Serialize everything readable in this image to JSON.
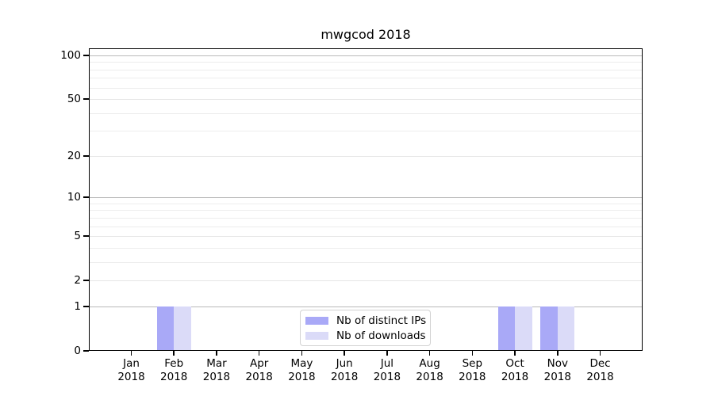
{
  "chart_data": {
    "type": "bar",
    "title": "mwgcod 2018",
    "categories": [
      "Jan 2018",
      "Feb 2018",
      "Mar 2018",
      "Apr 2018",
      "May 2018",
      "Jun 2018",
      "Jul 2018",
      "Aug 2018",
      "Sep 2018",
      "Oct 2018",
      "Nov 2018",
      "Dec 2018"
    ],
    "series": [
      {
        "name": "Nb of distinct IPs",
        "color": "#a9a9f7",
        "values": [
          0,
          1,
          0,
          0,
          0,
          0,
          0,
          0,
          0,
          1,
          1,
          0
        ]
      },
      {
        "name": "Nb of downloads",
        "color": "#dbdbf8",
        "values": [
          0,
          1,
          0,
          0,
          0,
          0,
          0,
          0,
          0,
          1,
          1,
          0
        ]
      }
    ],
    "y_axis": {
      "scale": "log1p",
      "tick_labels": [
        "0",
        "1",
        "2",
        "5",
        "10",
        "20",
        "50",
        "100"
      ],
      "tick_values": [
        0,
        1,
        2,
        5,
        10,
        20,
        50,
        100
      ],
      "minor_gridline_values": [
        3,
        4,
        6,
        7,
        8,
        9,
        30,
        40,
        60,
        70,
        80,
        90
      ],
      "decade_gridline_values": [
        1,
        10,
        100
      ],
      "ylim_top": 112
    },
    "x_axis": {
      "tick_count": 12
    },
    "legend": {
      "position": "lower center"
    },
    "grid": true,
    "colors": {
      "axis": "#000000",
      "text": "#000000",
      "gridline_decade": "#b9b9b9",
      "gridline_major": "#e6e6e6",
      "gridline_minor": "#ededed",
      "legend_border": "#d2d2d2",
      "background": "#ffffff"
    }
  }
}
